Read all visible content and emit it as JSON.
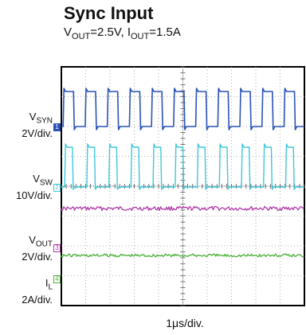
{
  "header": {
    "title": "Sync Input",
    "subtitle": {
      "vout_main": "V",
      "vout_sub": "OUT",
      "vout_val": "=2.5V, ",
      "iout_main": "I",
      "iout_sub": "OUT",
      "iout_val": "=1.5A"
    }
  },
  "channels": [
    {
      "main": "V",
      "sub": "SYN",
      "scale": "2V/div.",
      "marker": "1",
      "color": "#2a52b8"
    },
    {
      "main": "V",
      "sub": "SW",
      "scale": "10V/div.",
      "marker": "2",
      "color": "#3fc8d8"
    },
    {
      "main": "V",
      "sub": "OUT",
      "scale": "2V/div.",
      "marker": "3",
      "color": "#b03aa8"
    },
    {
      "main": "I",
      "sub": "L",
      "scale": "2A/div.",
      "marker": "4",
      "color": "#4caf3a"
    }
  ],
  "trigger_marker": "T",
  "chart_data": {
    "type": "line",
    "title": "Sync Input",
    "subtitle": "VOUT=2.5V, IOUT=1.5A",
    "xlabel": "1μs/div.",
    "grid": true,
    "series": [
      {
        "name": "VSYN",
        "scale": "2V/div.",
        "waveform": "square",
        "pulses_per_screen": 11
      },
      {
        "name": "VSW",
        "scale": "10V/div.",
        "waveform": "pulse",
        "pulses_per_screen": 11
      },
      {
        "name": "VOUT",
        "scale": "2V/div.",
        "waveform": "dc-with-ripple"
      },
      {
        "name": "IL",
        "scale": "2A/div.",
        "waveform": "dc-with-ripple"
      }
    ]
  }
}
